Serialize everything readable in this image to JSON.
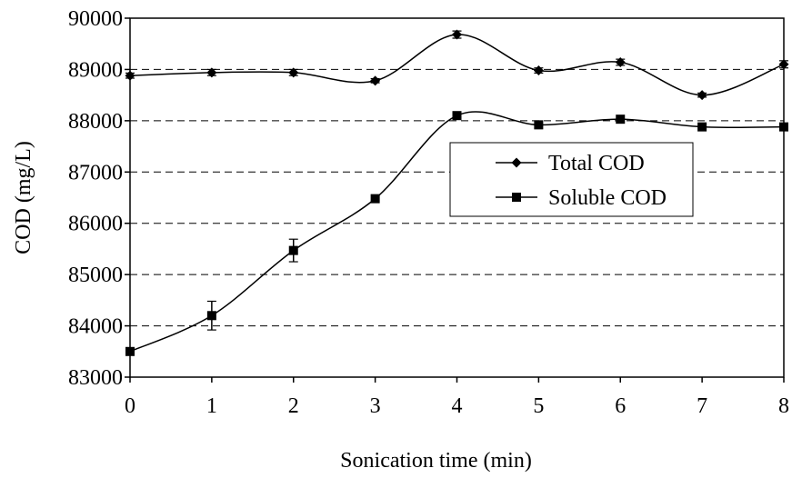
{
  "chart_data": {
    "type": "line",
    "title": "",
    "xlabel": "Sonication time (min)",
    "ylabel": "COD (mg/L)",
    "xlim": [
      0,
      8
    ],
    "ylim": [
      83000,
      90000
    ],
    "x_ticks": [
      "0",
      "1",
      "2",
      "3",
      "4",
      "5",
      "6",
      "7",
      "8"
    ],
    "y_ticks": [
      "83000",
      "84000",
      "85000",
      "86000",
      "87000",
      "88000",
      "89000",
      "90000"
    ],
    "grid": "horizontal dashed",
    "legend_position": "center-right",
    "series": [
      {
        "name": "Total COD",
        "marker": "diamond",
        "x": [
          0,
          1,
          2,
          3,
          4,
          5,
          6,
          7,
          8
        ],
        "y": [
          88880,
          88940,
          88940,
          88780,
          89680,
          88980,
          89140,
          88500,
          89100
        ],
        "error": [
          50,
          60,
          60,
          40,
          70,
          50,
          60,
          40,
          70
        ]
      },
      {
        "name": "Soluble COD",
        "marker": "square",
        "x": [
          0,
          1,
          2,
          3,
          4,
          5,
          6,
          7,
          8
        ],
        "y": [
          83500,
          84200,
          85470,
          86480,
          88100,
          87920,
          88030,
          87880,
          87880
        ],
        "error": [
          0,
          280,
          220,
          0,
          0,
          0,
          0,
          0,
          0
        ]
      }
    ]
  }
}
